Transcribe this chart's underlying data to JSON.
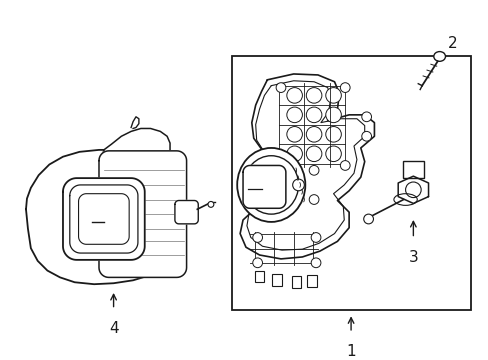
{
  "background_color": "#ffffff",
  "line_color": "#1a1a1a",
  "figsize": [
    4.89,
    3.6
  ],
  "dpi": 100,
  "label_1": "1",
  "label_2": "2",
  "label_3": "3",
  "label_4": "4"
}
